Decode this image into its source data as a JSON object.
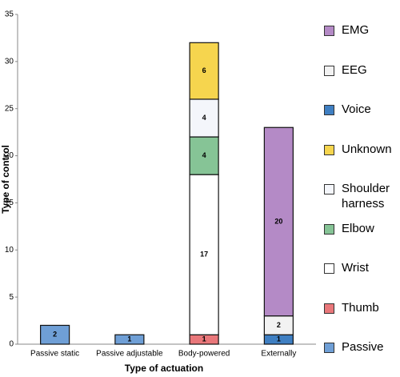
{
  "chart_data": {
    "type": "stacked_bar",
    "categories": [
      "Passive static",
      "Passive adjustable",
      "Body-powered",
      "Externally"
    ],
    "x_label": "Type of actuation",
    "y_label": "Type of control",
    "ylim": [
      0,
      35
    ],
    "yticks": [
      0,
      5,
      10,
      15,
      20,
      25,
      30,
      35
    ],
    "grid": false,
    "series": [
      {
        "name": "Passive",
        "color": "#6f9fd6",
        "values": [
          2,
          1,
          0,
          0
        ]
      },
      {
        "name": "Thumb",
        "color": "#e9777a",
        "values": [
          0,
          0,
          1,
          0
        ]
      },
      {
        "name": "Wrist",
        "color": "#ffffff",
        "values": [
          0,
          0,
          17,
          0
        ]
      },
      {
        "name": "Elbow",
        "color": "#86c496",
        "values": [
          0,
          0,
          4,
          0
        ]
      },
      {
        "name": "Shoulder harness",
        "color": "#f4f6fb",
        "values": [
          0,
          0,
          4,
          0
        ]
      },
      {
        "name": "Unknown",
        "color": "#f6d54e",
        "values": [
          0,
          0,
          6,
          0
        ]
      },
      {
        "name": "Voice",
        "color": "#3f7fc2",
        "values": [
          0,
          0,
          0,
          1
        ]
      },
      {
        "name": "EEG",
        "color": "#f2f2f2",
        "values": [
          0,
          0,
          0,
          2
        ]
      },
      {
        "name": "EMG",
        "color": "#b48ac6",
        "values": [
          0,
          0,
          0,
          20
        ]
      }
    ]
  }
}
